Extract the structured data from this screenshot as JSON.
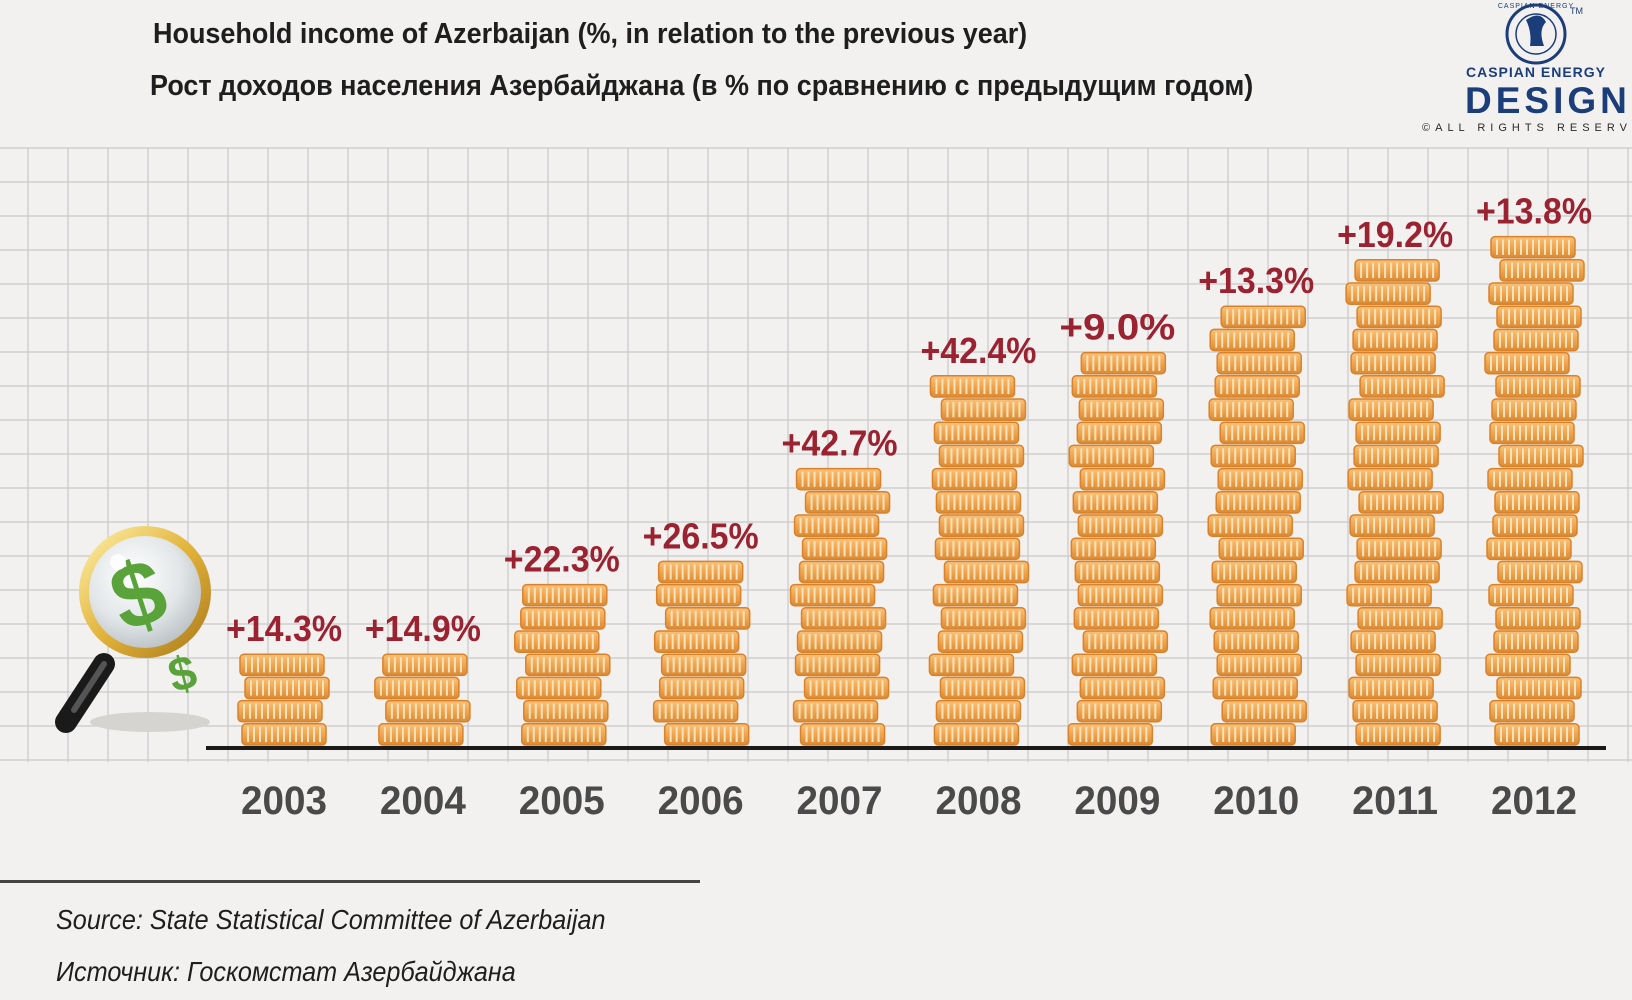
{
  "title": "Household income of Azerbaijan (%, in relation to the previous year)",
  "subtitle": "Рост доходов населения Азербайджана (в % по сравнению с предыдущим годом)",
  "logo": {
    "line1": "CASPIAN ENERGY",
    "line2": "DESIGN",
    "line3": "©ALL RIGHTS RESERVED",
    "ring_text": "CASPIAN ENERGY",
    "trademark": "TM"
  },
  "source": "Source: State Statistical Committee of Azerbaijan",
  "source_ru": "Источник: Госкомстат Азербайджана",
  "colors": {
    "coin": "#f0a54e",
    "coin_edge": "#d9822b",
    "label": "#9b2230",
    "grid": "#c9c9c9",
    "brand": "#1b3d7a"
  },
  "icons": [
    "magnifier-icon",
    "dollar-sign-icon"
  ],
  "chart_data": {
    "type": "bar",
    "categories": [
      "2003",
      "2004",
      "2005",
      "2006",
      "2007",
      "2008",
      "2009",
      "2010",
      "2011",
      "2012"
    ],
    "values": [
      14.3,
      14.9,
      22.3,
      26.5,
      42.7,
      42.4,
      9.0,
      13.3,
      19.2,
      13.8
    ],
    "labels": [
      "+14.3%",
      "+14.9%",
      "+22.3%",
      "+26.5%",
      "+42.7%",
      "+42.4%",
      "+9.0%",
      "+13.3%",
      "+19.2%",
      "+13.8%"
    ],
    "coin_counts": [
      4,
      4,
      7,
      8,
      12,
      16,
      17,
      19,
      21,
      22
    ],
    "grid": true,
    "legend": "none"
  }
}
